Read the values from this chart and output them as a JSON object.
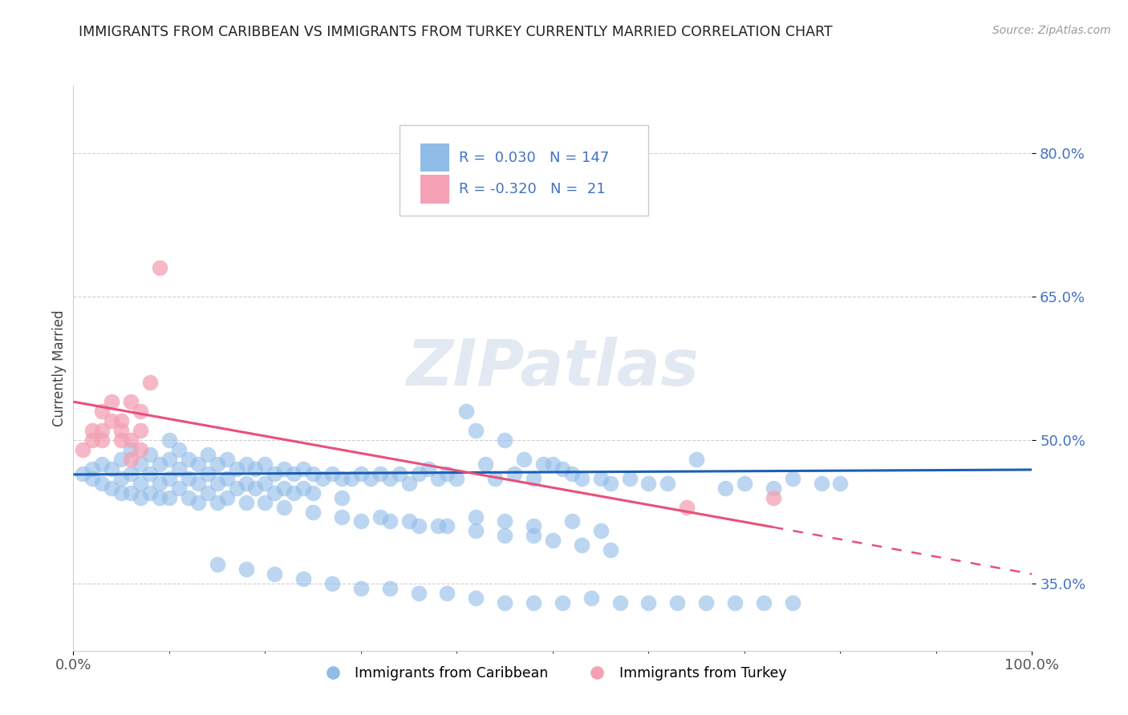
{
  "title": "IMMIGRANTS FROM CARIBBEAN VS IMMIGRANTS FROM TURKEY CURRENTLY MARRIED CORRELATION CHART",
  "source": "Source: ZipAtlas.com",
  "ylabel": "Currently Married",
  "xlim": [
    0.0,
    1.0
  ],
  "ylim": [
    0.28,
    0.87
  ],
  "yticks": [
    0.35,
    0.5,
    0.65,
    0.8
  ],
  "ytick_labels": [
    "35.0%",
    "50.0%",
    "65.0%",
    "80.0%"
  ],
  "xtick_labels": [
    "0.0%",
    "100.0%"
  ],
  "blue_color": "#90bce8",
  "pink_color": "#f4a0b5",
  "blue_line_color": "#1a5fb4",
  "pink_line_color": "#e8507a",
  "watermark": "ZIPatlas",
  "blue_trend_x": [
    0.0,
    1.0
  ],
  "blue_trend_y": [
    0.464,
    0.469
  ],
  "pink_trend_x": [
    0.0,
    1.0
  ],
  "pink_trend_y": [
    0.54,
    0.36
  ],
  "blue_scatter_x": [
    0.01,
    0.02,
    0.02,
    0.03,
    0.03,
    0.04,
    0.04,
    0.05,
    0.05,
    0.05,
    0.06,
    0.06,
    0.06,
    0.07,
    0.07,
    0.07,
    0.08,
    0.08,
    0.08,
    0.09,
    0.09,
    0.09,
    0.1,
    0.1,
    0.1,
    0.1,
    0.11,
    0.11,
    0.11,
    0.12,
    0.12,
    0.12,
    0.13,
    0.13,
    0.13,
    0.14,
    0.14,
    0.14,
    0.15,
    0.15,
    0.15,
    0.16,
    0.16,
    0.16,
    0.17,
    0.17,
    0.18,
    0.18,
    0.18,
    0.19,
    0.19,
    0.2,
    0.2,
    0.2,
    0.21,
    0.21,
    0.22,
    0.22,
    0.23,
    0.23,
    0.24,
    0.24,
    0.25,
    0.25,
    0.26,
    0.27,
    0.28,
    0.28,
    0.29,
    0.3,
    0.31,
    0.32,
    0.33,
    0.34,
    0.35,
    0.36,
    0.37,
    0.38,
    0.39,
    0.4,
    0.41,
    0.42,
    0.43,
    0.44,
    0.45,
    0.46,
    0.47,
    0.48,
    0.49,
    0.5,
    0.51,
    0.52,
    0.53,
    0.55,
    0.56,
    0.58,
    0.6,
    0.62,
    0.65,
    0.68,
    0.7,
    0.73,
    0.75,
    0.78,
    0.8,
    0.32,
    0.35,
    0.38,
    0.42,
    0.45,
    0.48,
    0.52,
    0.55,
    0.22,
    0.25,
    0.28,
    0.3,
    0.33,
    0.36,
    0.39,
    0.42,
    0.45,
    0.48,
    0.5,
    0.53,
    0.56,
    0.15,
    0.18,
    0.21,
    0.24,
    0.27,
    0.3,
    0.33,
    0.36,
    0.39,
    0.42,
    0.45,
    0.48,
    0.51,
    0.54,
    0.57,
    0.6,
    0.63,
    0.66,
    0.69,
    0.72,
    0.75
  ],
  "blue_scatter_y": [
    0.465,
    0.47,
    0.46,
    0.475,
    0.455,
    0.47,
    0.45,
    0.48,
    0.46,
    0.445,
    0.49,
    0.465,
    0.445,
    0.475,
    0.455,
    0.44,
    0.485,
    0.465,
    0.445,
    0.475,
    0.455,
    0.44,
    0.5,
    0.48,
    0.46,
    0.44,
    0.49,
    0.47,
    0.45,
    0.48,
    0.46,
    0.44,
    0.475,
    0.455,
    0.435,
    0.485,
    0.465,
    0.445,
    0.475,
    0.455,
    0.435,
    0.48,
    0.46,
    0.44,
    0.47,
    0.45,
    0.475,
    0.455,
    0.435,
    0.47,
    0.45,
    0.475,
    0.455,
    0.435,
    0.465,
    0.445,
    0.47,
    0.45,
    0.465,
    0.445,
    0.47,
    0.45,
    0.465,
    0.445,
    0.46,
    0.465,
    0.46,
    0.44,
    0.46,
    0.465,
    0.46,
    0.465,
    0.46,
    0.465,
    0.455,
    0.465,
    0.47,
    0.46,
    0.465,
    0.46,
    0.53,
    0.51,
    0.475,
    0.46,
    0.5,
    0.465,
    0.48,
    0.46,
    0.475,
    0.475,
    0.47,
    0.465,
    0.46,
    0.46,
    0.455,
    0.46,
    0.455,
    0.455,
    0.48,
    0.45,
    0.455,
    0.45,
    0.46,
    0.455,
    0.455,
    0.42,
    0.415,
    0.41,
    0.42,
    0.415,
    0.41,
    0.415,
    0.405,
    0.43,
    0.425,
    0.42,
    0.415,
    0.415,
    0.41,
    0.41,
    0.405,
    0.4,
    0.4,
    0.395,
    0.39,
    0.385,
    0.37,
    0.365,
    0.36,
    0.355,
    0.35,
    0.345,
    0.345,
    0.34,
    0.34,
    0.335,
    0.33,
    0.33,
    0.33,
    0.335,
    0.33,
    0.33,
    0.33,
    0.33,
    0.33,
    0.33,
    0.33
  ],
  "pink_scatter_x": [
    0.01,
    0.02,
    0.02,
    0.03,
    0.03,
    0.03,
    0.04,
    0.04,
    0.05,
    0.05,
    0.05,
    0.06,
    0.06,
    0.06,
    0.07,
    0.07,
    0.07,
    0.08,
    0.09,
    0.64,
    0.73
  ],
  "pink_scatter_y": [
    0.49,
    0.51,
    0.5,
    0.51,
    0.53,
    0.5,
    0.54,
    0.52,
    0.52,
    0.5,
    0.51,
    0.54,
    0.5,
    0.48,
    0.53,
    0.51,
    0.49,
    0.56,
    0.68,
    0.43,
    0.44
  ]
}
